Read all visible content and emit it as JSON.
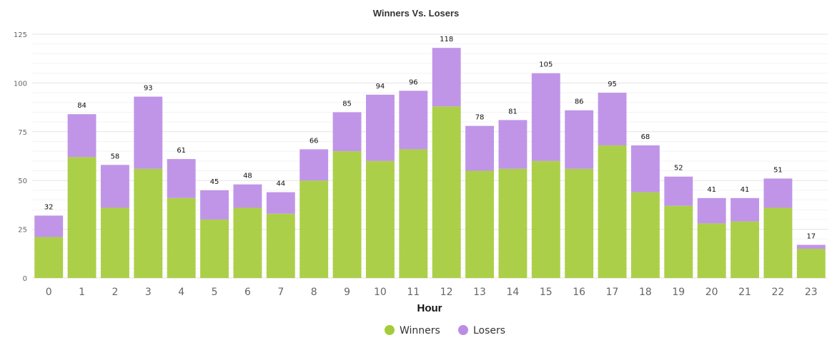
{
  "chart_data": {
    "type": "bar",
    "stacked": true,
    "title": "Winners Vs. Losers",
    "xlabel": "Hour",
    "ylabel": "",
    "ylim": [
      0,
      125
    ],
    "yticks": [
      0,
      25,
      50,
      75,
      100,
      125
    ],
    "grid": true,
    "legend": "bottom-center",
    "categories": [
      "0",
      "1",
      "2",
      "3",
      "4",
      "5",
      "6",
      "7",
      "8",
      "9",
      "10",
      "11",
      "12",
      "13",
      "14",
      "15",
      "16",
      "17",
      "18",
      "19",
      "20",
      "21",
      "22",
      "23"
    ],
    "series": [
      {
        "name": "Winners",
        "color": "#a5cb3a",
        "values": [
          21,
          62,
          36,
          56,
          41,
          30,
          36,
          33,
          50,
          65,
          60,
          66,
          88,
          55,
          56,
          60,
          56,
          68,
          44,
          37,
          28,
          29,
          36,
          15
        ]
      },
      {
        "name": "Losers",
        "color": "#bb8ce6",
        "values": [
          11,
          22,
          22,
          37,
          20,
          15,
          12,
          11,
          16,
          20,
          34,
          30,
          30,
          23,
          25,
          45,
          30,
          27,
          24,
          15,
          13,
          12,
          15,
          2
        ]
      }
    ],
    "totals": [
      32,
      84,
      58,
      93,
      61,
      45,
      48,
      44,
      66,
      85,
      94,
      96,
      118,
      78,
      81,
      105,
      86,
      95,
      68,
      52,
      41,
      41,
      51,
      17
    ]
  }
}
